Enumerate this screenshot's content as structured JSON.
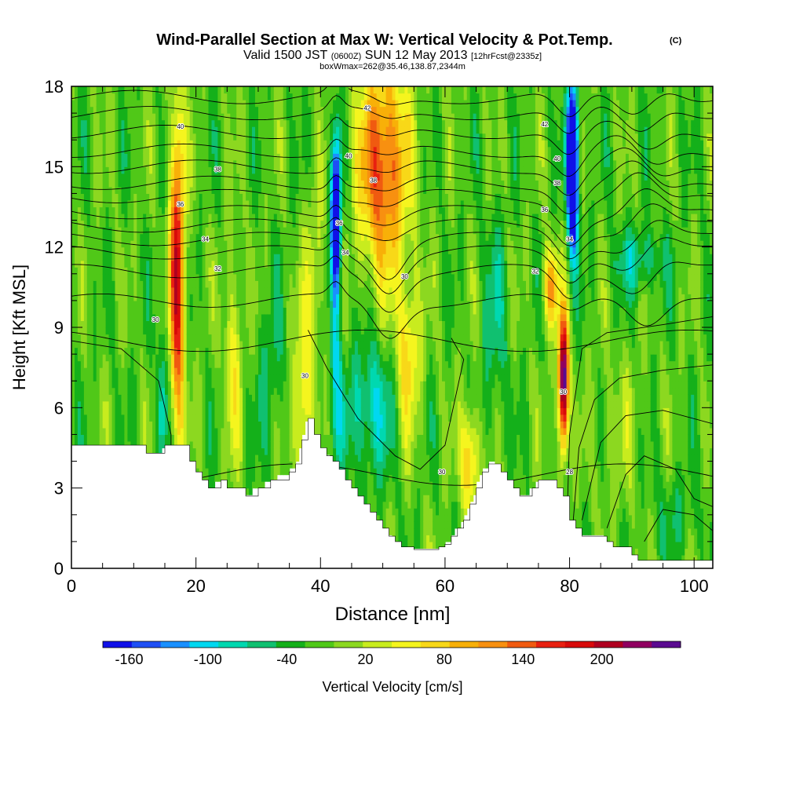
{
  "chart_data": {
    "type": "heatmap",
    "title": "Wind-Parallel Section at Max W: Vertical Velocity & Pot.Temp.",
    "title_mark": "(C)",
    "subtitle_parts": [
      "Valid 1500 JST",
      "(0600Z)",
      "SUN 12 May 2013",
      "[12hrFcst@2335z]"
    ],
    "subtitle2": "boxWmax=262@35.46,138.87,2344m",
    "xlabel": "Distance [nm]",
    "ylabel": "Height [Kft MSL]",
    "xlim": [
      0,
      103
    ],
    "ylim": [
      0,
      18
    ],
    "xticks": [
      0,
      20,
      40,
      60,
      80,
      100
    ],
    "yticks": [
      0,
      3,
      6,
      9,
      12,
      15,
      18
    ],
    "grid": false,
    "colorbar": {
      "label": "Vertical Velocity [cm/s]",
      "ticks": [
        -160,
        -100,
        -40,
        20,
        80,
        140,
        200
      ],
      "bounds": [
        -180,
        260
      ],
      "colors": [
        "#1010e8",
        "#1f4ff5",
        "#1a90ff",
        "#00d8f0",
        "#00d8b0",
        "#10c070",
        "#14b01a",
        "#50c818",
        "#8cd820",
        "#c8ec1e",
        "#f5f51e",
        "#f8d818",
        "#f8b008",
        "#f89010",
        "#f05a10",
        "#e82010",
        "#d80a0a",
        "#b00020",
        "#900060",
        "#5a0a90"
      ],
      "position": "bottom"
    },
    "velocity_features": [
      {
        "x": 17,
        "y": 11,
        "w": 250,
        "note": "updraft band"
      },
      {
        "x": 42.5,
        "y": 13,
        "w": -150,
        "note": "downdraft band"
      },
      {
        "x": 50,
        "y": 14,
        "w": 110,
        "note": "upper updraft"
      },
      {
        "x": 48,
        "y": 6,
        "w": -40,
        "note": "mid-level sink"
      },
      {
        "x": 64,
        "y": 4,
        "w": 80,
        "note": "low updraft"
      },
      {
        "x": 79,
        "y": 7,
        "w": 262,
        "note": "max updraft"
      },
      {
        "x": 80.5,
        "y": 15,
        "w": -170,
        "note": "downdraft core"
      },
      {
        "x": 92,
        "y": 11.5,
        "w": -60,
        "note": "wave"
      }
    ],
    "terrain": {
      "x": [
        0,
        10,
        12,
        14,
        15,
        18,
        19,
        20,
        21,
        22,
        24,
        25,
        27,
        28,
        30,
        32,
        35,
        36,
        37,
        38,
        39,
        40,
        41,
        42,
        43,
        44,
        45,
        46,
        47,
        48,
        49,
        50,
        51,
        52,
        53,
        54,
        55,
        56,
        57,
        58,
        59,
        60,
        61,
        62,
        63,
        64,
        65,
        66,
        67,
        68,
        69,
        70,
        71,
        72,
        73,
        74,
        75,
        76,
        77,
        78,
        79,
        80,
        81,
        82,
        84,
        85,
        86,
        87,
        88,
        89,
        90,
        91,
        92,
        95,
        96,
        98,
        100,
        101,
        102,
        103
      ],
      "y": [
        4.6,
        4.6,
        4.3,
        4.3,
        4.6,
        4.6,
        4.0,
        3.6,
        3.3,
        3.0,
        3.3,
        3.0,
        3.0,
        2.7,
        3.0,
        3.3,
        3.6,
        3.9,
        4.8,
        5.6,
        5.0,
        4.5,
        4.2,
        4.0,
        3.7,
        3.3,
        3.0,
        2.7,
        2.4,
        2.1,
        1.8,
        1.5,
        1.2,
        1.0,
        0.8,
        0.8,
        0.7,
        0.7,
        0.7,
        0.7,
        0.8,
        0.9,
        1.2,
        1.5,
        1.8,
        2.4,
        3.0,
        3.6,
        3.9,
        3.9,
        3.6,
        3.3,
        3.0,
        2.7,
        2.7,
        3.0,
        3.3,
        3.3,
        3.3,
        3.0,
        2.7,
        1.8,
        1.5,
        1.2,
        1.2,
        1.2,
        1.0,
        0.8,
        0.8,
        0.8,
        0.5,
        0.3,
        0.3,
        0.3,
        0.3,
        0.3,
        0.3,
        0.3,
        0.3,
        0.3
      ]
    },
    "theta_contour_labels": [
      {
        "text": "40",
        "x": 17.5,
        "y": 16.5
      },
      {
        "text": "38",
        "x": 23.5,
        "y": 14.9
      },
      {
        "text": "36",
        "x": 17.5,
        "y": 13.6
      },
      {
        "text": "34",
        "x": 21.5,
        "y": 12.3
      },
      {
        "text": "32",
        "x": 23.5,
        "y": 11.2
      },
      {
        "text": "30",
        "x": 13.5,
        "y": 9.3
      },
      {
        "text": "42",
        "x": 47.5,
        "y": 17.2
      },
      {
        "text": "40",
        "x": 44.5,
        "y": 15.4
      },
      {
        "text": "38",
        "x": 48.5,
        "y": 14.5
      },
      {
        "text": "36",
        "x": 43.0,
        "y": 12.9
      },
      {
        "text": "34",
        "x": 44.0,
        "y": 11.8
      },
      {
        "text": "30",
        "x": 53.5,
        "y": 10.9
      },
      {
        "text": "42",
        "x": 76.0,
        "y": 16.6
      },
      {
        "text": "40",
        "x": 78.0,
        "y": 15.3
      },
      {
        "text": "38",
        "x": 78.0,
        "y": 14.4
      },
      {
        "text": "36",
        "x": 76.0,
        "y": 13.4
      },
      {
        "text": "34",
        "x": 80.0,
        "y": 12.3
      },
      {
        "text": "32",
        "x": 74.5,
        "y": 11.1
      },
      {
        "text": "30",
        "x": 37.5,
        "y": 7.2
      },
      {
        "text": "30",
        "x": 79.0,
        "y": 6.6
      },
      {
        "text": "30",
        "x": 59.5,
        "y": 3.6
      },
      {
        "text": "28",
        "x": 80.0,
        "y": 3.6
      }
    ]
  }
}
